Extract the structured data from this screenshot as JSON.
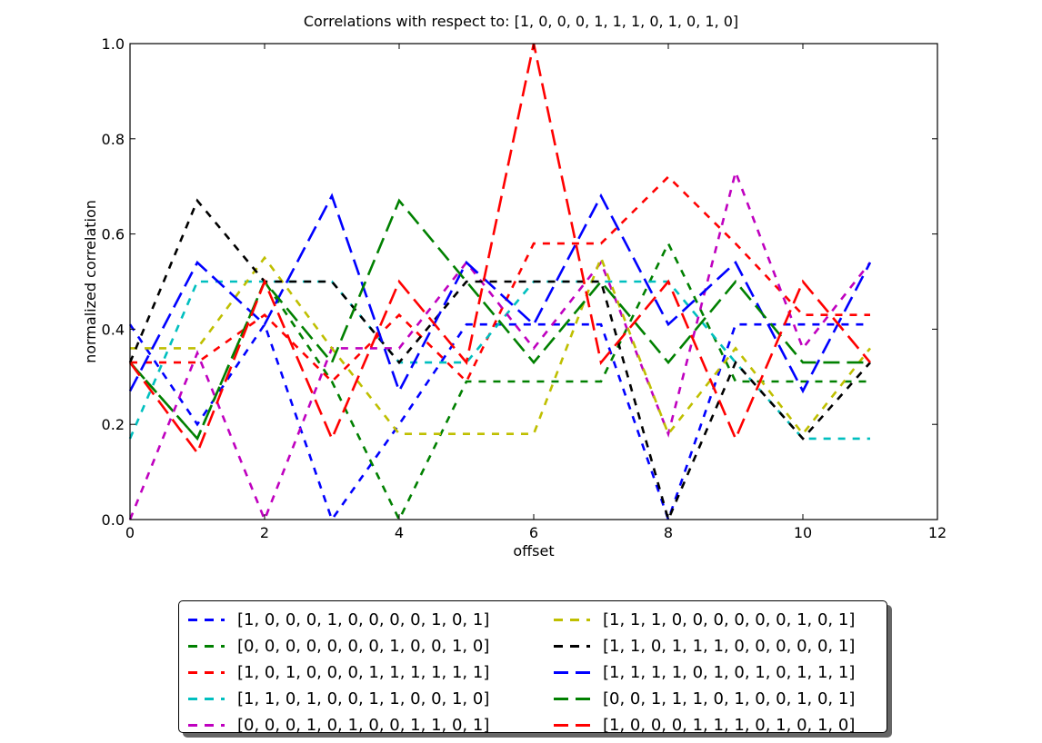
{
  "chart_data": {
    "type": "line",
    "title": "Correlations with respect to: [1, 0, 0, 0, 1, 1, 1, 0, 1, 0, 1, 0]",
    "xlabel": "offset",
    "ylabel": "normalized correlation",
    "xlim": [
      0,
      12
    ],
    "ylim": [
      0,
      1.0
    ],
    "xticks": [
      "0",
      "2",
      "4",
      "6",
      "8",
      "10",
      "12"
    ],
    "yticks": [
      "0.0",
      "0.2",
      "0.4",
      "0.6",
      "0.8",
      "1.0"
    ],
    "grid": false,
    "legend_position": "below",
    "x": [
      0,
      1,
      2,
      3,
      4,
      5,
      6,
      7,
      8,
      9,
      10,
      11
    ],
    "series": [
      {
        "name": "[1, 0, 0, 0, 1, 0, 0, 0, 0, 1, 0, 1]",
        "color": "#0000ff",
        "dash": "short",
        "values": [
          0.41,
          0.2,
          0.41,
          0.0,
          0.2,
          0.41,
          0.41,
          0.41,
          0.0,
          0.41,
          0.41,
          0.41
        ]
      },
      {
        "name": "[0, 0, 0, 0, 0, 0, 0, 1, 0, 0, 1, 0]",
        "color": "#008000",
        "dash": "short",
        "values": [
          0.33,
          0.17,
          0.5,
          0.29,
          0.0,
          0.29,
          0.29,
          0.29,
          0.58,
          0.29,
          0.29,
          0.29
        ]
      },
      {
        "name": "[1, 0, 1, 0, 0, 0, 1, 1, 1, 1, 1, 1]",
        "color": "#ff0000",
        "dash": "short",
        "values": [
          0.33,
          0.33,
          0.43,
          0.29,
          0.43,
          0.29,
          0.58,
          0.58,
          0.72,
          0.58,
          0.43,
          0.43
        ]
      },
      {
        "name": "[1, 1, 0, 1, 0, 0, 1, 1, 0, 0, 1, 0]",
        "color": "#00bfbf",
        "dash": "short",
        "values": [
          0.17,
          0.5,
          0.5,
          0.5,
          0.33,
          0.33,
          0.5,
          0.5,
          0.5,
          0.33,
          0.17,
          0.17
        ]
      },
      {
        "name": "[0, 0, 0, 1, 0, 1, 0, 0, 1, 1, 0, 1]",
        "color": "#bf00bf",
        "dash": "short",
        "values": [
          0.0,
          0.35,
          0.0,
          0.36,
          0.36,
          0.54,
          0.36,
          0.54,
          0.18,
          0.73,
          0.36,
          0.54
        ]
      },
      {
        "name": "[1, 1, 1, 0, 0, 0, 0, 0, 0, 1, 0, 1]",
        "color": "#bfbf00",
        "dash": "short",
        "values": [
          0.36,
          0.36,
          0.55,
          0.36,
          0.18,
          0.18,
          0.18,
          0.55,
          0.18,
          0.36,
          0.18,
          0.36
        ]
      },
      {
        "name": "[1, 1, 0, 1, 1, 1, 0, 0, 0, 0, 0, 1]",
        "color": "#000000",
        "dash": "short",
        "values": [
          0.33,
          0.67,
          0.5,
          0.5,
          0.33,
          0.5,
          0.5,
          0.5,
          0.0,
          0.33,
          0.17,
          0.33
        ]
      },
      {
        "name": "[1, 1, 1, 1, 0, 1, 0, 1, 0, 1, 1, 1]",
        "color": "#0000ff",
        "dash": "long",
        "values": [
          0.27,
          0.54,
          0.41,
          0.68,
          0.27,
          0.54,
          0.41,
          0.68,
          0.41,
          0.54,
          0.27,
          0.54
        ]
      },
      {
        "name": "[0, 0, 1, 1, 1, 0, 1, 0, 0, 1, 0, 1]",
        "color": "#008000",
        "dash": "long",
        "values": [
          0.33,
          0.17,
          0.5,
          0.33,
          0.67,
          0.5,
          0.33,
          0.5,
          0.33,
          0.5,
          0.33,
          0.33
        ]
      },
      {
        "name": "[1, 0, 0, 0, 1, 1, 1, 0, 1, 0, 1, 0]",
        "color": "#ff0000",
        "dash": "long",
        "values": [
          0.33,
          0.14,
          0.5,
          0.17,
          0.5,
          0.33,
          1.0,
          0.33,
          0.5,
          0.17,
          0.5,
          0.33
        ]
      }
    ]
  }
}
